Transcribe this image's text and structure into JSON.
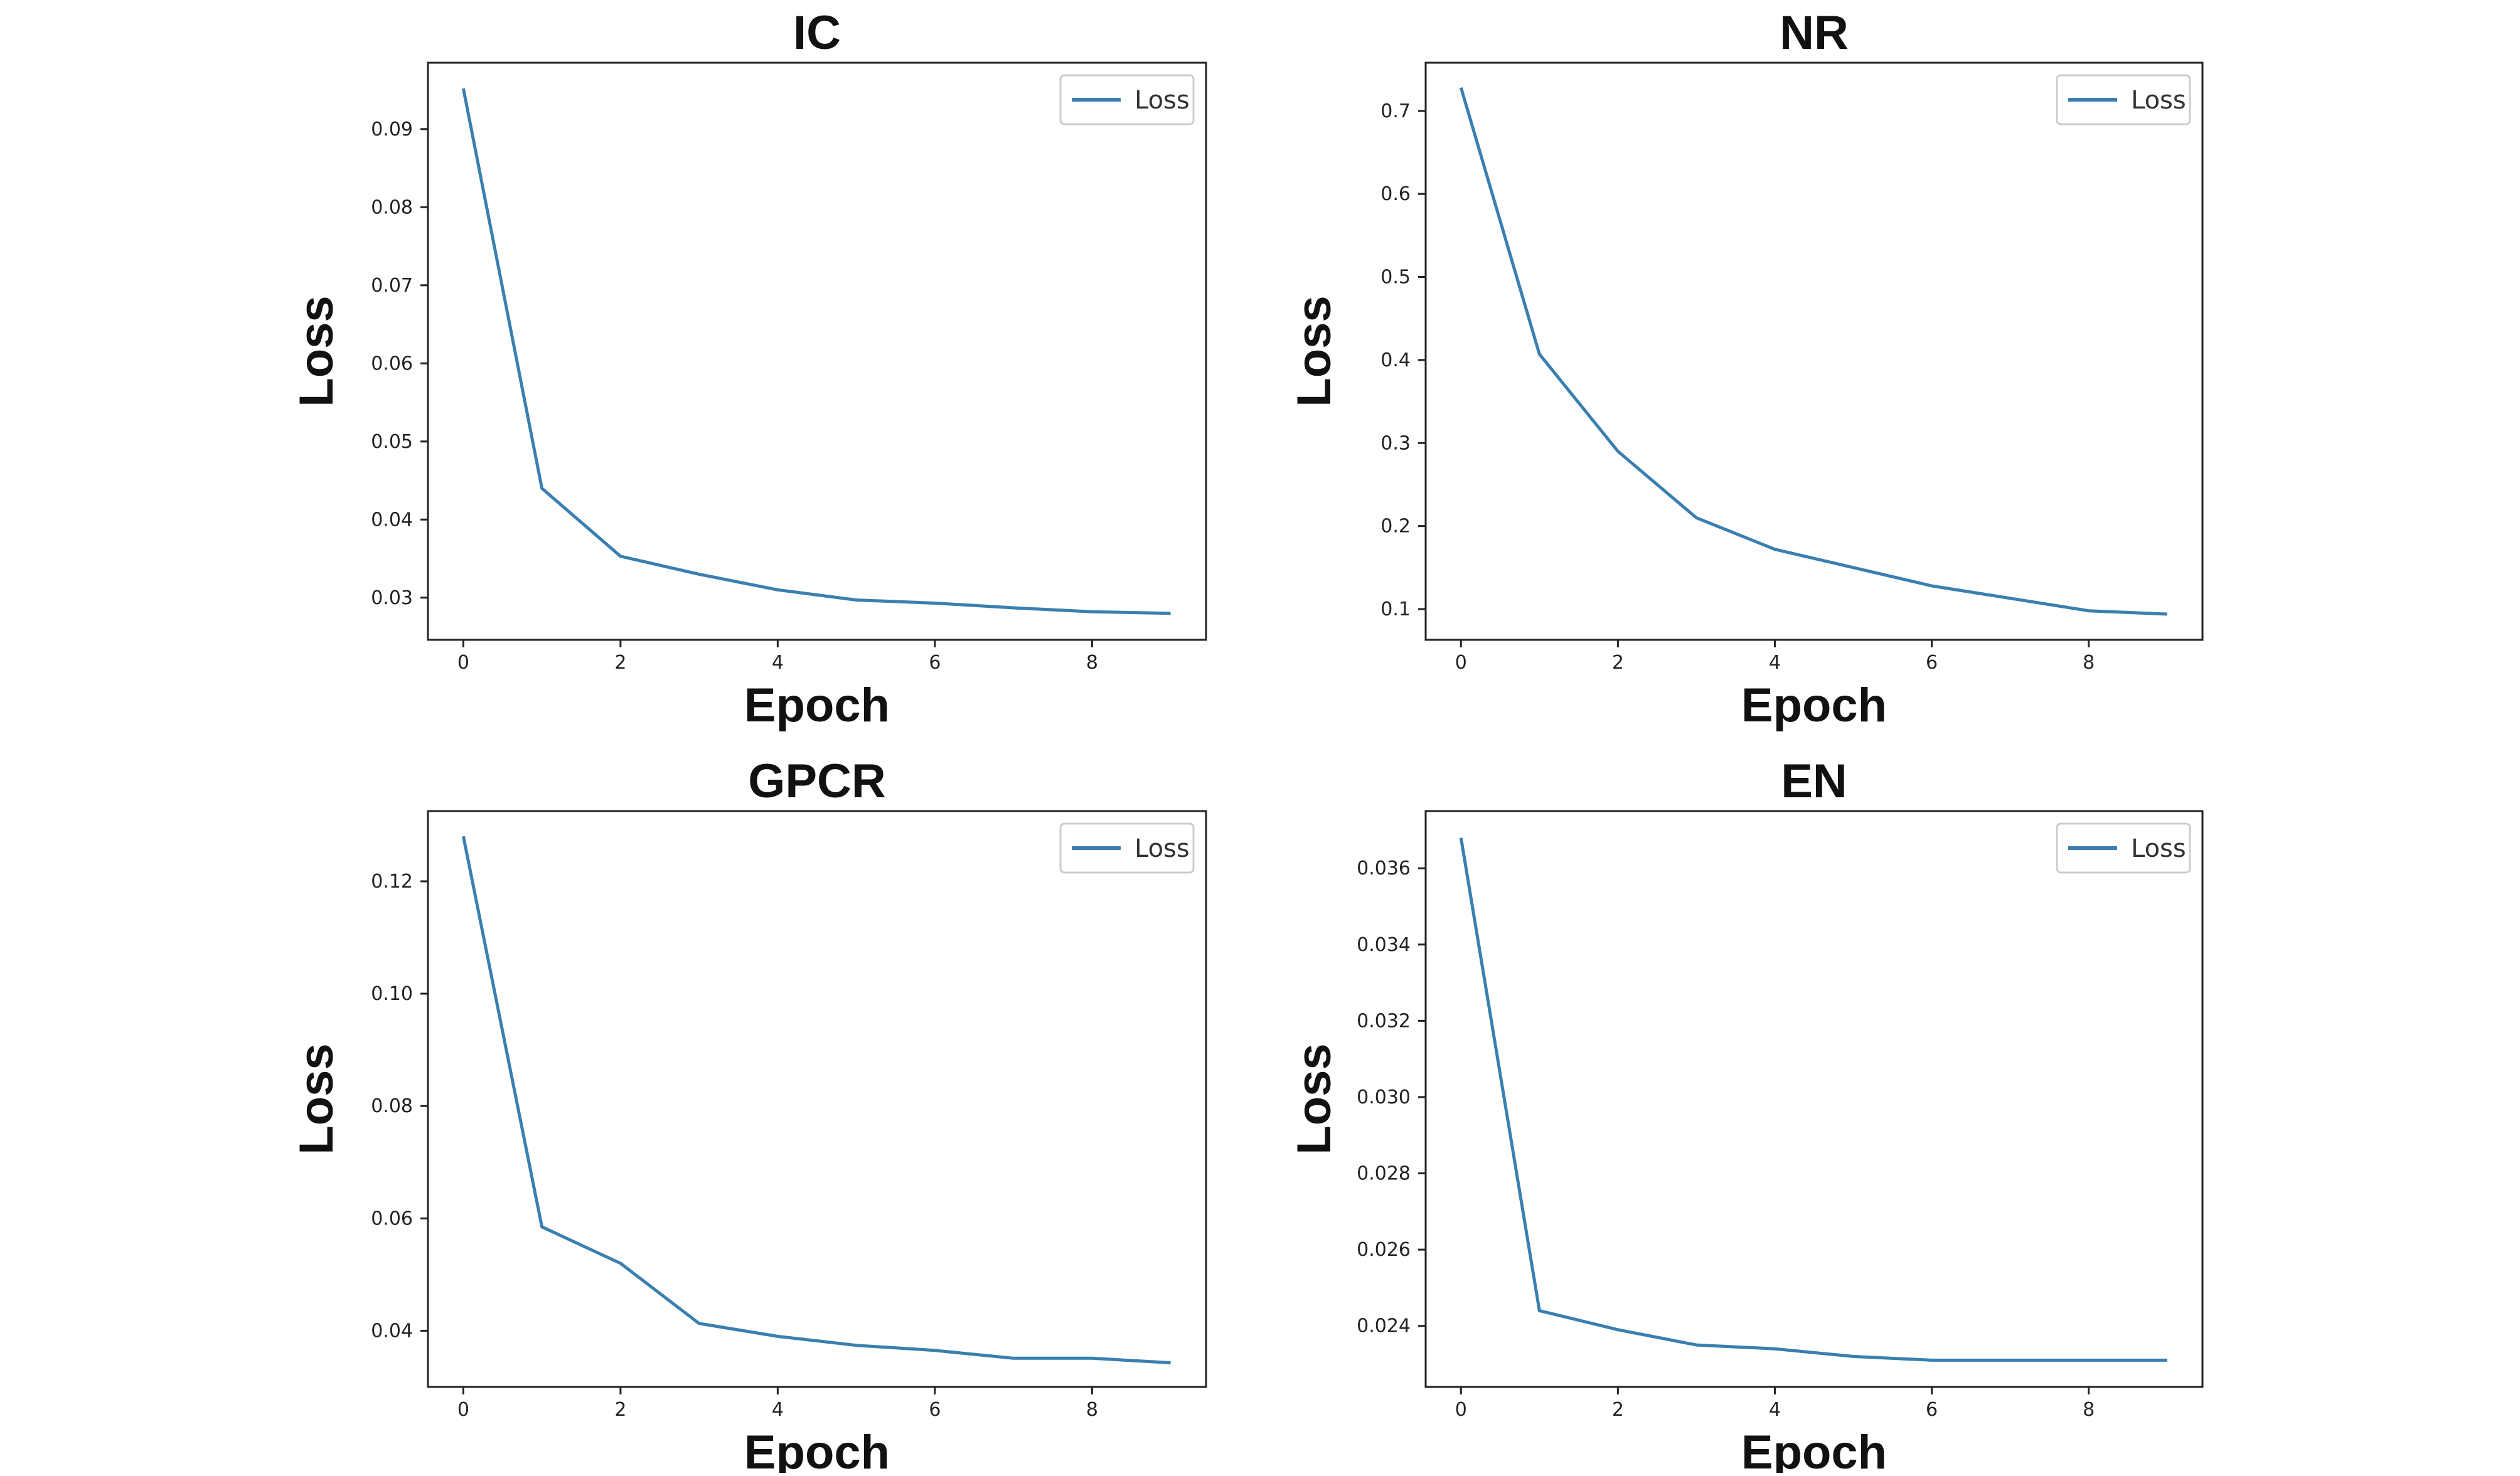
{
  "chart_data": [
    {
      "type": "line",
      "title": "IC",
      "xlabel": "Epoch",
      "ylabel": "Loss",
      "x": [
        0,
        1,
        2,
        3,
        4,
        5,
        6,
        7,
        8,
        9
      ],
      "series": [
        {
          "name": "Loss",
          "values": [
            0.0952,
            0.044,
            0.0353,
            0.033,
            0.031,
            0.0297,
            0.0293,
            0.0287,
            0.0282,
            0.028
          ]
        }
      ],
      "xticks": [
        0,
        2,
        4,
        6,
        8
      ],
      "xtick_labels": [
        "0",
        "2",
        "4",
        "6",
        "8"
      ],
      "yticks": [
        0.03,
        0.04,
        0.05,
        0.06,
        0.07,
        0.08,
        0.09
      ],
      "ytick_labels": [
        "0.03",
        "0.04",
        "0.05",
        "0.06",
        "0.07",
        "0.08",
        "0.09"
      ],
      "xlim": [
        -0.45,
        9.45
      ],
      "ylim": [
        0.0246,
        0.0985
      ],
      "legend": "top-right",
      "grid": false
    },
    {
      "type": "line",
      "title": "NR",
      "xlabel": "Epoch",
      "ylabel": "Loss",
      "x": [
        0,
        1,
        2,
        3,
        4,
        5,
        6,
        7,
        8,
        9
      ],
      "series": [
        {
          "name": "Loss",
          "values": [
            0.728,
            0.407,
            0.29,
            0.21,
            0.172,
            0.15,
            0.128,
            0.113,
            0.098,
            0.094
          ]
        }
      ],
      "xticks": [
        0,
        2,
        4,
        6,
        8
      ],
      "xtick_labels": [
        "0",
        "2",
        "4",
        "6",
        "8"
      ],
      "yticks": [
        0.1,
        0.2,
        0.3,
        0.4,
        0.5,
        0.6,
        0.7
      ],
      "ytick_labels": [
        "0.1",
        "0.2",
        "0.3",
        "0.4",
        "0.5",
        "0.6",
        "0.7"
      ],
      "xlim": [
        -0.45,
        9.45
      ],
      "ylim": [
        0.063,
        0.758
      ],
      "legend": "top-right",
      "grid": false
    },
    {
      "type": "line",
      "title": "GPCR",
      "xlabel": "Epoch",
      "ylabel": "Loss",
      "x": [
        0,
        1,
        2,
        3,
        4,
        5,
        6,
        7,
        8,
        9
      ],
      "series": [
        {
          "name": "Loss",
          "values": [
            0.128,
            0.0585,
            0.052,
            0.0413,
            0.039,
            0.0374,
            0.0365,
            0.0351,
            0.0351,
            0.0343
          ]
        }
      ],
      "xticks": [
        0,
        2,
        4,
        6,
        8
      ],
      "xtick_labels": [
        "0",
        "2",
        "4",
        "6",
        "8"
      ],
      "yticks": [
        0.04,
        0.06,
        0.08,
        0.1,
        0.12
      ],
      "ytick_labels": [
        "0.04",
        "0.06",
        "0.08",
        "0.10",
        "0.12"
      ],
      "xlim": [
        -0.45,
        9.45
      ],
      "ylim": [
        0.03,
        0.1325
      ],
      "legend": "top-right",
      "grid": false
    },
    {
      "type": "line",
      "title": "EN",
      "xlabel": "Epoch",
      "ylabel": "Loss",
      "x": [
        0,
        1,
        2,
        3,
        4,
        5,
        6,
        7,
        8,
        9
      ],
      "series": [
        {
          "name": "Loss",
          "values": [
            0.0368,
            0.0244,
            0.0239,
            0.0235,
            0.0234,
            0.0232,
            0.0231,
            0.0231,
            0.0231,
            0.0231
          ]
        }
      ],
      "xticks": [
        0,
        2,
        4,
        6,
        8
      ],
      "xtick_labels": [
        "0",
        "2",
        "4",
        "6",
        "8"
      ],
      "yticks": [
        0.024,
        0.026,
        0.028,
        0.03,
        0.032,
        0.034,
        0.036
      ],
      "ytick_labels": [
        "0.024",
        "0.026",
        "0.028",
        "0.030",
        "0.032",
        "0.034",
        "0.036"
      ],
      "xlim": [
        -0.45,
        9.45
      ],
      "ylim": [
        0.0224,
        0.0375
      ],
      "legend": "top-right",
      "grid": false
    }
  ],
  "colors": {
    "line": "#3a7fb0",
    "frame": "#222222",
    "background": "#ffffff"
  }
}
